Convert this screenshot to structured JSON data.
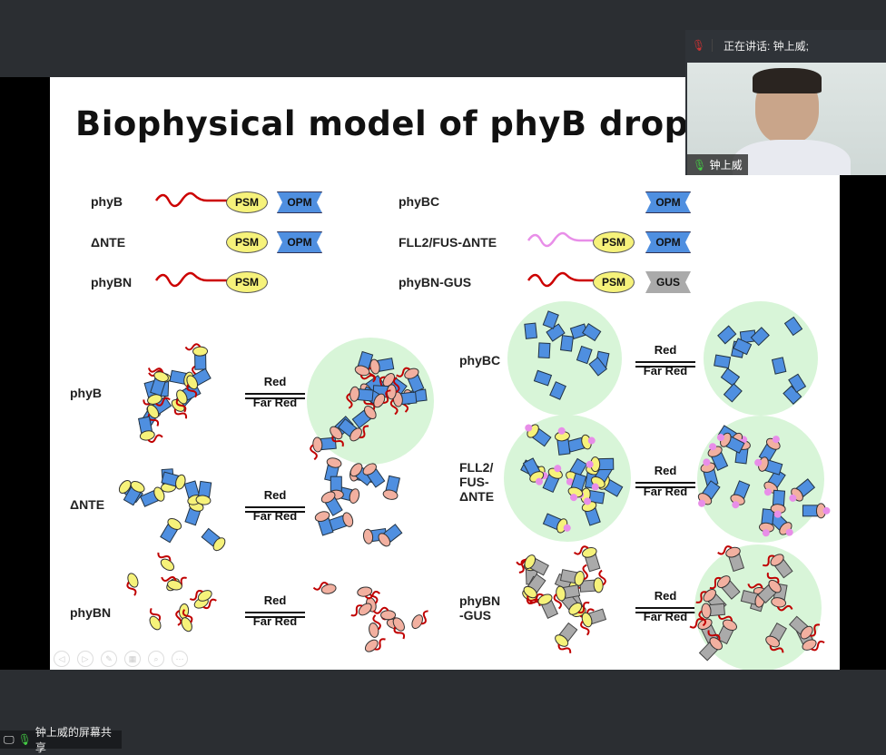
{
  "slide": {
    "title": "Biophysical model of phyB droplet a",
    "constructs_left": [
      {
        "label": "phyB",
        "domains": [
          "PSM",
          "OPM"
        ]
      },
      {
        "label": "ΔNTE",
        "domains": [
          "PSM",
          "OPM"
        ]
      },
      {
        "label": "phyBN",
        "domains": [
          "PSM"
        ]
      }
    ],
    "constructs_right": [
      {
        "label": "phyBC",
        "domains": [
          "OPM"
        ]
      },
      {
        "label": "FLL2/FUS-ΔNTE",
        "domains": [
          "PSM",
          "OPM"
        ]
      },
      {
        "label": "phyBN-GUS",
        "domains": [
          "PSM",
          "GUS"
        ]
      }
    ],
    "models_left": [
      "phyB",
      "ΔNTE",
      "phyBN"
    ],
    "models_right": [
      "phyBC",
      "FLL2/\nFUS-\nΔNTE",
      "phyBN\n-GUS"
    ],
    "arrow_red": "Red",
    "arrow_far_red": "Far Red",
    "colors": {
      "psm": "#f6f27a",
      "opm": "#4f8fe0",
      "gus": "#aaaaaa",
      "droplet": "#d8f5d8",
      "nte": "#c00000",
      "fll2": "#e88ee8"
    }
  },
  "slide_controls": [
    "previous-icon",
    "next-icon",
    "pen-icon",
    "grid-icon",
    "zoom-icon",
    "more-icon"
  ],
  "video": {
    "speaking_label": "正在讲话: 钟上威;",
    "participant_name": "钟上威"
  },
  "share_badge": "钟上威的屏幕共享"
}
